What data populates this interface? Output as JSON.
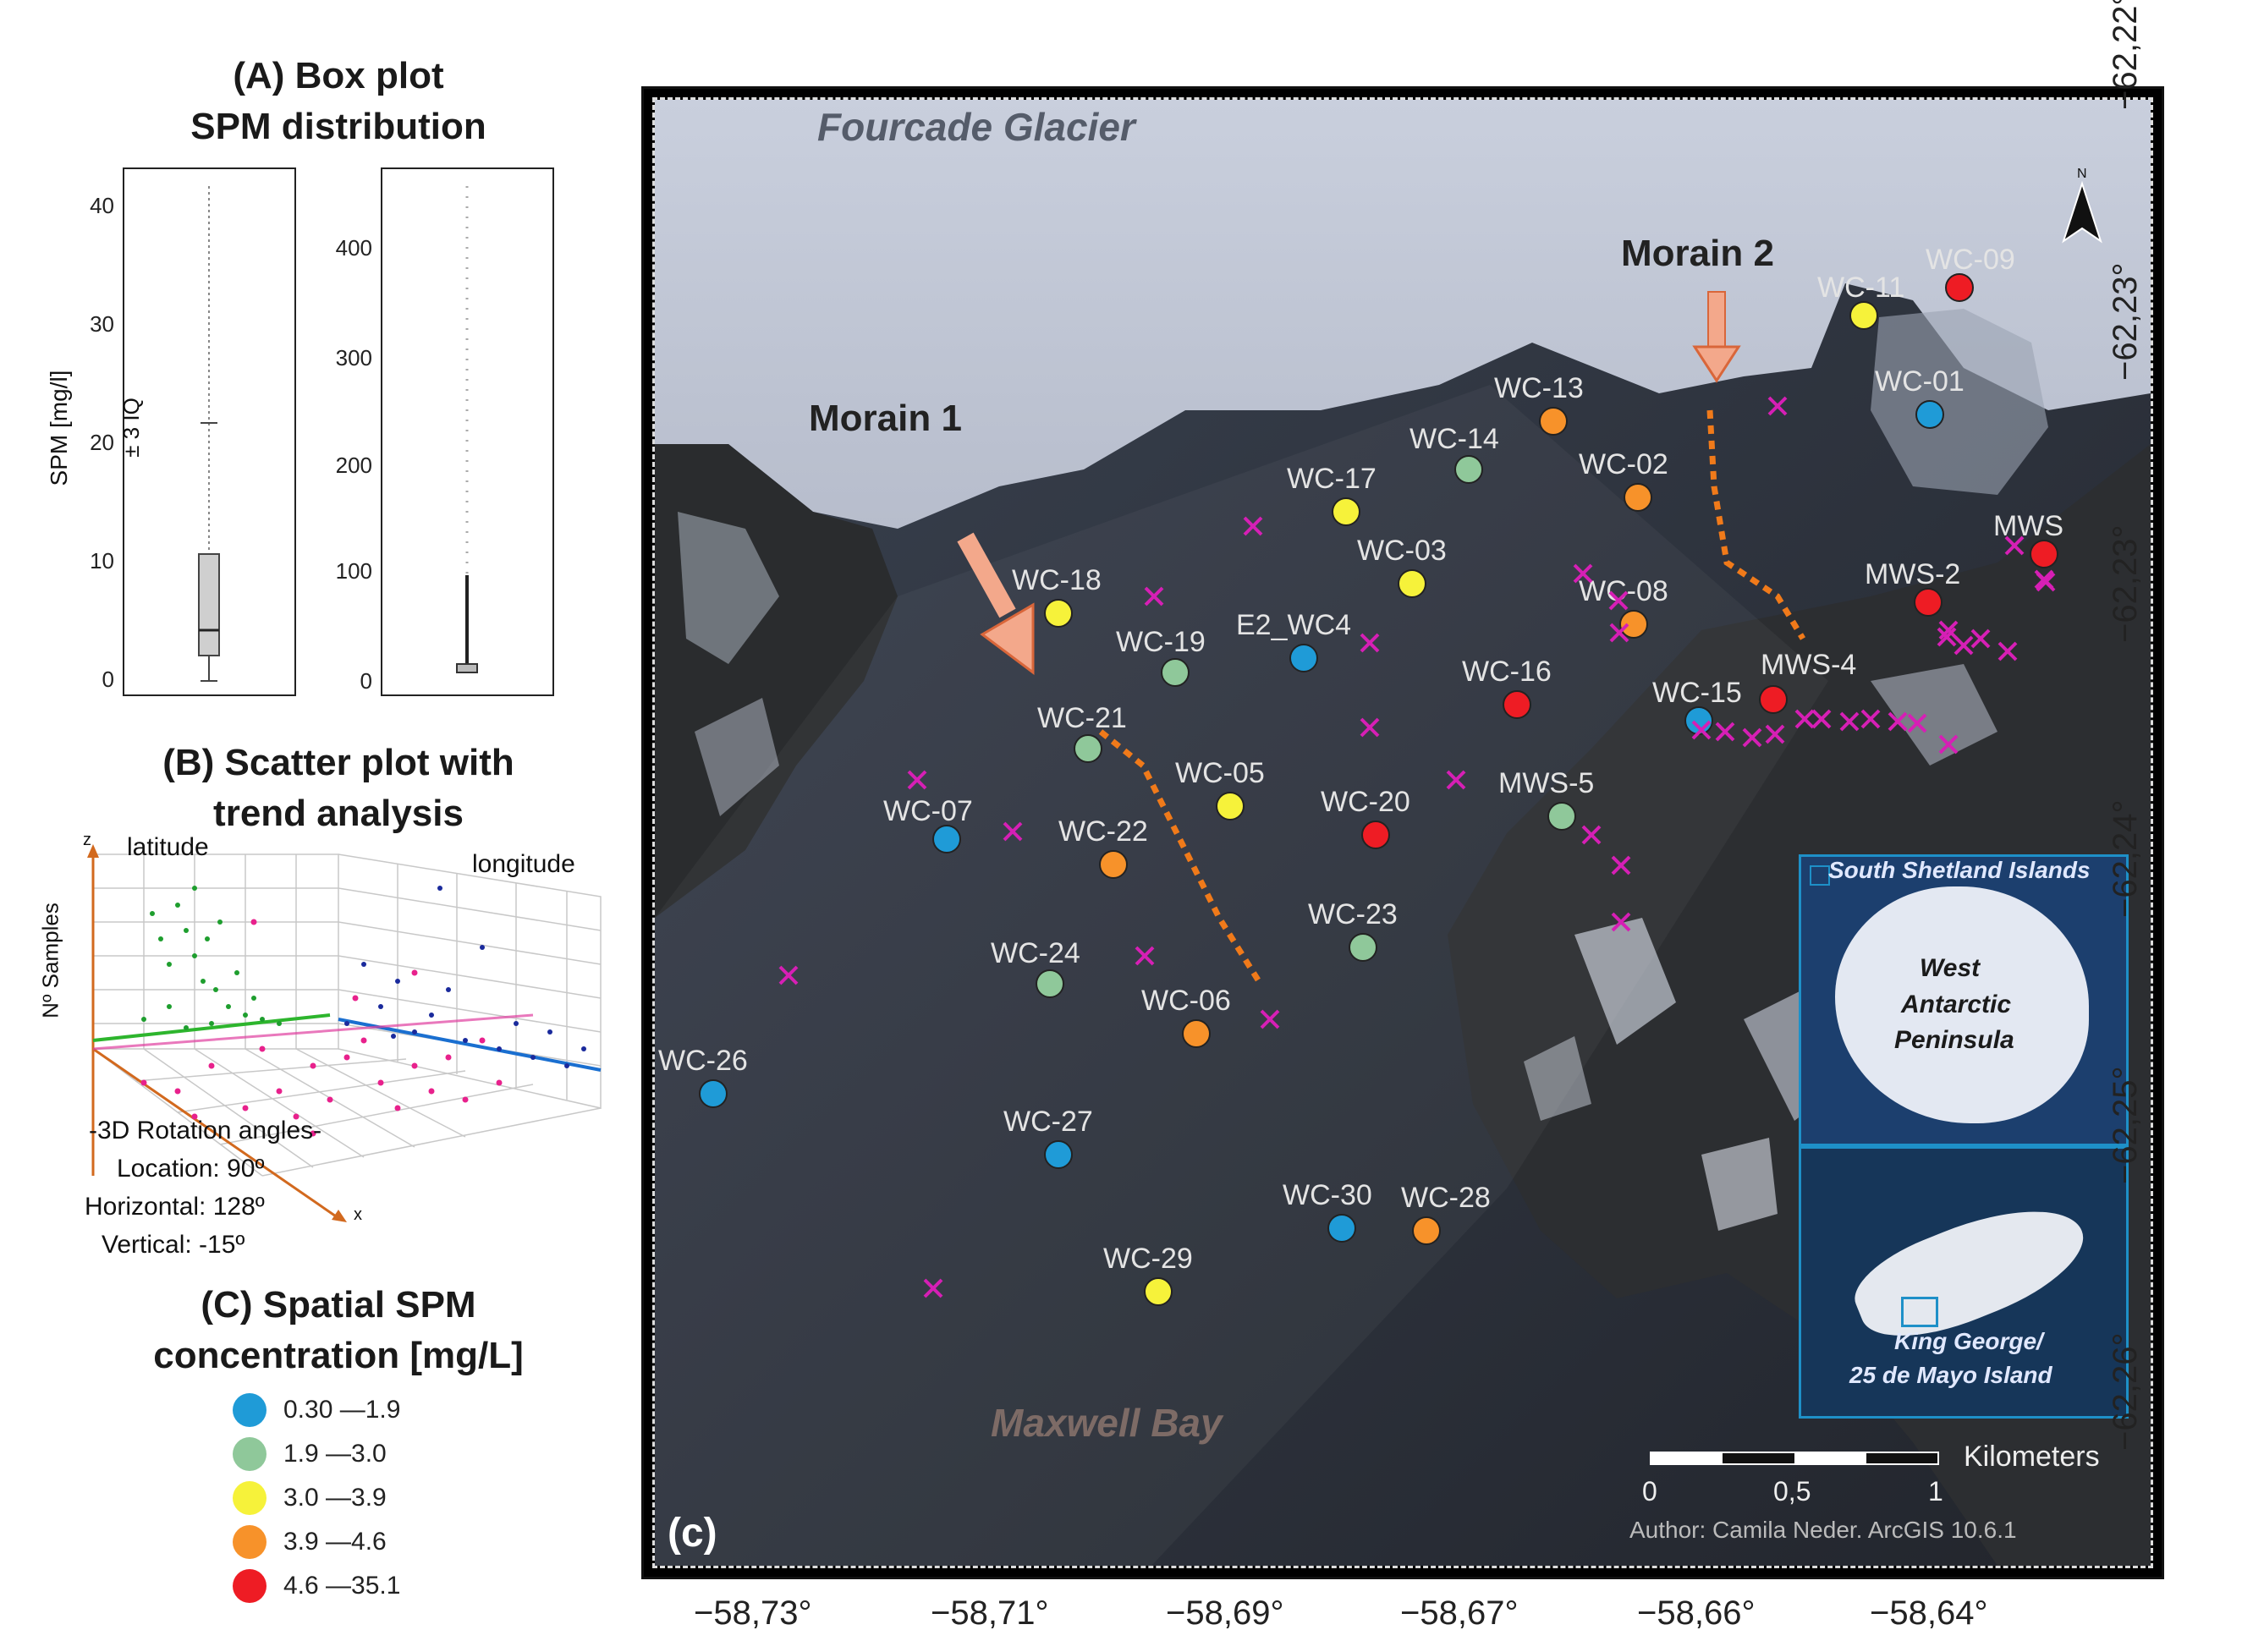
{
  "panel_a": {
    "title_line1": "(A) Box plot",
    "title_line2": "SPM distribution",
    "ylabel": "SPM [mg/l]",
    "annotation": "± 3 IQ",
    "left_ticks": [
      "40",
      "30",
      "20",
      "10",
      "0"
    ],
    "right_ticks": [
      "400",
      "300",
      "200",
      "100",
      "0"
    ]
  },
  "panel_b": {
    "title_line1": "(B) Scatter plot with",
    "title_line2": "trend analysis",
    "z_axis": "z",
    "x_axis": "x",
    "ylabel": "Nº Samples",
    "label_latitude": "latitude",
    "label_longitude": "longitude",
    "rotation_title": "-3D Rotation angles-",
    "rotation_location": "Location: 90º",
    "rotation_horizontal": "Horizontal: 128º",
    "rotation_vertical": "Vertical: -15º"
  },
  "panel_c_legend": {
    "title_line1": "(C) Spatial SPM",
    "title_line2": "concentration [mg/L]",
    "classes": [
      {
        "label": "0.30 —1.9",
        "color": "#1f9bd7"
      },
      {
        "label": "1.9 —3.0",
        "color": "#8fc89a"
      },
      {
        "label": "3.0 —3.9",
        "color": "#f6f23a"
      },
      {
        "label": "3.9 —4.6",
        "color": "#f7922a"
      },
      {
        "label": "4.6 —35.1",
        "color": "#ee1c24"
      }
    ]
  },
  "map": {
    "glacier_label": "Fourcade Glacier",
    "bay_label": "Maxwell Bay",
    "morain1": "Morain 1",
    "morain2": "Morain 2",
    "north": "N",
    "panel_label": "(c)",
    "scale_unit": "Kilometers",
    "scale_ticks": [
      "0",
      "0,5",
      "1"
    ],
    "author": "Author: Camila Neder. ArcGIS 10.6.1",
    "x_ticks": [
      "−58,73°",
      "−58,71°",
      "−58,69°",
      "−58,67°",
      "−58,66°",
      "−58,64°"
    ],
    "y_ticks": [
      "−62,22°",
      "−62,23°",
      "−62,23°",
      "−62,24°",
      "−62,25°",
      "−62,26°"
    ],
    "inset1_title": "South Shetland Islands",
    "inset1_region_l1": "West",
    "inset1_region_l2": "Antarctic",
    "inset1_region_l3": "Peninsula",
    "inset2_l1": "King George/",
    "inset2_l2": "25 de Mayo Island",
    "stations": [
      {
        "name": "WC-09",
        "class": 4
      },
      {
        "name": "WC-11",
        "class": 2
      },
      {
        "name": "WC-01",
        "class": 0
      },
      {
        "name": "MWS",
        "class": 4
      },
      {
        "name": "MWS-2",
        "class": 4
      },
      {
        "name": "WC-13",
        "class": 3
      },
      {
        "name": "WC-14",
        "class": 1
      },
      {
        "name": "WC-02",
        "class": 3
      },
      {
        "name": "WC-17",
        "class": 2
      },
      {
        "name": "WC-03",
        "class": 2
      },
      {
        "name": "WC-08",
        "class": 3
      },
      {
        "name": "WC-18",
        "class": 2
      },
      {
        "name": "WC-19",
        "class": 1
      },
      {
        "name": "E2_WC4",
        "class": 0
      },
      {
        "name": "WC-16",
        "class": 4
      },
      {
        "name": "WC-15",
        "class": 0
      },
      {
        "name": "MWS-4",
        "class": 4
      },
      {
        "name": "WC-21",
        "class": 1
      },
      {
        "name": "WC-05",
        "class": 2
      },
      {
        "name": "WC-20",
        "class": 4
      },
      {
        "name": "MWS-5",
        "class": 1
      },
      {
        "name": "WC-07",
        "class": 0
      },
      {
        "name": "WC-22",
        "class": 3
      },
      {
        "name": "WC-23",
        "class": 1
      },
      {
        "name": "WC-24",
        "class": 1
      },
      {
        "name": "WC-06",
        "class": 3
      },
      {
        "name": "WC-26",
        "class": 0
      },
      {
        "name": "WC-27",
        "class": 0
      },
      {
        "name": "WC-30",
        "class": 0
      },
      {
        "name": "WC-28",
        "class": 3
      },
      {
        "name": "WC-29",
        "class": 2
      }
    ]
  }
}
